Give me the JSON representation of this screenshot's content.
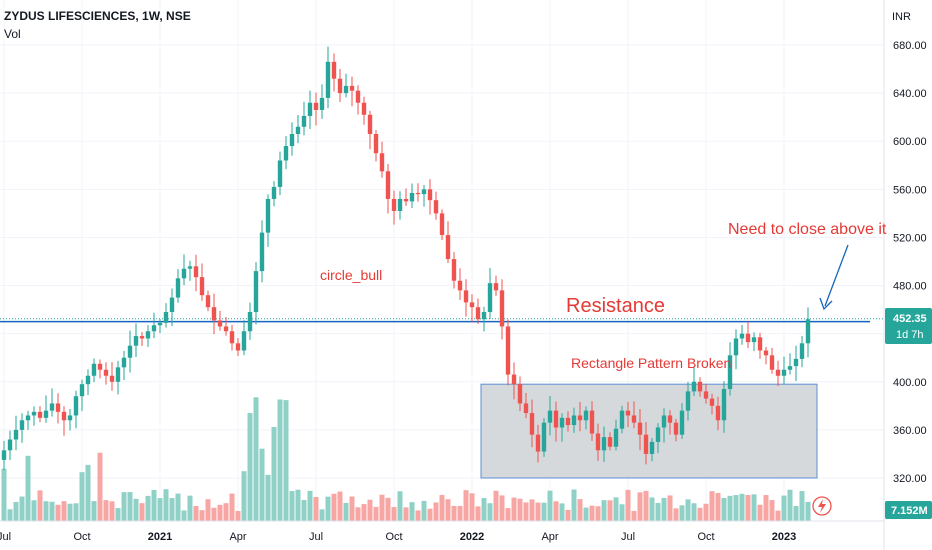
{
  "header": {
    "title": "ZYDUS LIFESCIENCES, 1W, NSE",
    "subtitle": "Vol",
    "currency": "INR"
  },
  "colors": {
    "up": "#26a69a",
    "down": "#ef5350",
    "vol_up": "#8fd1c6",
    "vol_down": "#f7a6a4",
    "resistance": "#1565c0",
    "box_fill": "#cfd2d6",
    "box_stroke": "#5b8fd6",
    "annotation": "#e53935"
  },
  "annotations": {
    "circle_bull": "circle_bull",
    "resistance": "Resistance",
    "rectangle": "Rectangle Pattern Broken",
    "close_above": "Need to close above it"
  },
  "price_tag": {
    "price": "452.35",
    "countdown": "1d 7h"
  },
  "volume_tag": "7.152M",
  "chart_data": {
    "type": "candlestick",
    "title": "ZYDUS LIFESCIENCES, 1W, NSE",
    "y_ticks": [
      "320.00",
      "360.00",
      "400.00",
      "440.00",
      "480.00",
      "520.00",
      "560.00",
      "600.00",
      "640.00",
      "680.00"
    ],
    "y_tick_values": [
      320,
      360,
      400,
      440,
      480,
      520,
      560,
      600,
      640,
      680
    ],
    "ylim": [
      305,
      698
    ],
    "x_ticks": [
      {
        "label": "Jul",
        "i": 0,
        "bold": false
      },
      {
        "label": "Oct",
        "i": 13,
        "bold": false
      },
      {
        "label": "2021",
        "i": 26,
        "bold": true
      },
      {
        "label": "Apr",
        "i": 39,
        "bold": false
      },
      {
        "label": "Jul",
        "i": 52,
        "bold": false
      },
      {
        "label": "Oct",
        "i": 65,
        "bold": false
      },
      {
        "label": "2022",
        "i": 78,
        "bold": true
      },
      {
        "label": "Apr",
        "i": 91,
        "bold": false
      },
      {
        "label": "Jul",
        "i": 104,
        "bold": false
      },
      {
        "label": "Oct",
        "i": 117,
        "bold": false
      },
      {
        "label": "2023",
        "i": 130,
        "bold": true
      }
    ],
    "resistance_level": 450,
    "rectangle": {
      "i_start": 80,
      "i_end": 135,
      "high": 398,
      "low": 320
    },
    "last_price": 452.35,
    "last_volume": "7.152M",
    "closes": [
      343,
      352,
      360,
      368,
      372,
      375,
      370,
      376,
      382,
      375,
      368,
      372,
      388,
      398,
      405,
      415,
      410,
      405,
      400,
      412,
      420,
      430,
      438,
      436,
      442,
      447,
      449,
      458,
      470,
      486,
      494,
      496,
      487,
      472,
      462,
      451,
      446,
      442,
      432,
      426,
      442,
      458,
      492,
      524,
      552,
      562,
      584,
      596,
      606,
      612,
      621,
      632,
      626,
      636,
      666,
      652,
      640,
      646,
      642,
      632,
      622,
      606,
      590,
      575,
      552,
      542,
      552,
      550,
      557,
      556,
      560,
      551,
      540,
      522,
      502,
      484,
      476,
      466,
      462,
      452,
      458,
      482,
      476,
      446,
      406,
      398,
      382,
      374,
      356,
      342,
      366,
      376,
      362,
      370,
      364,
      372,
      368,
      376,
      357,
      343,
      354,
      346,
      361,
      376,
      372,
      366,
      356,
      340,
      350,
      362,
      372,
      366,
      356,
      376,
      392,
      400,
      392,
      386,
      380,
      368,
      394,
      422,
      436,
      440,
      433,
      437,
      426,
      422,
      410,
      405,
      410,
      413,
      419,
      432,
      452
    ]
  }
}
